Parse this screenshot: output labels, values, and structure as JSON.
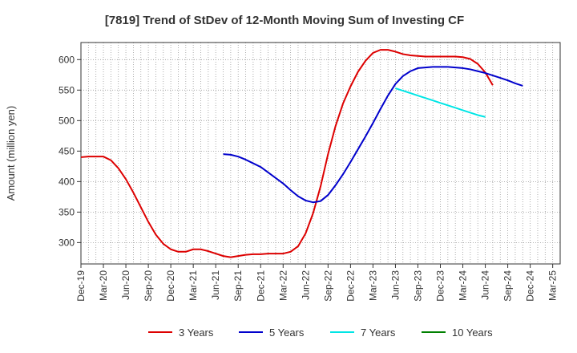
{
  "chart_data": {
    "type": "line",
    "title": "[7819]  Trend of StDev of 12-Month Moving Sum of Investing CF",
    "ylabel": "Amount (million yen)",
    "xlabel": "",
    "ylim": [
      265,
      628
    ],
    "yticks": [
      300,
      350,
      400,
      450,
      500,
      550,
      600
    ],
    "x_tick_labels": [
      "Dec-19",
      "Mar-20",
      "Jun-20",
      "Sep-20",
      "Dec-20",
      "Mar-21",
      "Jun-21",
      "Sep-21",
      "Dec-21",
      "Mar-22",
      "Jun-22",
      "Sep-22",
      "Dec-22",
      "Mar-23",
      "Jun-23",
      "Sep-23",
      "Dec-23",
      "Mar-24",
      "Jun-24",
      "Sep-24",
      "Dec-24",
      "Mar-25"
    ],
    "grid": true,
    "legend_position": "bottom",
    "series": [
      {
        "name": "3 Years",
        "color": "#dd0000",
        "start_index": 0,
        "values": [
          440,
          441,
          441,
          441,
          435,
          422,
          404,
          382,
          358,
          334,
          313,
          298,
          289,
          285,
          285,
          289,
          289,
          286,
          282,
          278,
          276,
          278,
          280,
          281,
          281,
          282,
          282,
          282,
          285,
          294,
          315,
          348,
          392,
          445,
          491,
          528,
          556,
          580,
          598,
          611,
          616,
          616,
          613,
          609,
          607,
          606,
          605,
          605,
          605,
          605,
          605,
          604,
          601,
          593,
          579,
          558
        ]
      },
      {
        "name": "5 Years",
        "color": "#0000cc",
        "start_index": 19,
        "values": [
          445,
          444,
          441,
          436,
          430,
          424,
          415,
          406,
          397,
          386,
          376,
          369,
          366,
          368,
          378,
          394,
          412,
          432,
          453,
          474,
          496,
          519,
          541,
          560,
          573,
          581,
          586,
          587,
          588,
          588,
          588,
          587,
          586,
          584,
          581,
          578,
          574,
          570,
          566,
          561,
          557
        ]
      },
      {
        "name": "7 Years",
        "color": "#00e5e5",
        "start_index": 42,
        "values": [
          553,
          549,
          545,
          541,
          537,
          533,
          529,
          525,
          521,
          517,
          513,
          509,
          506
        ]
      },
      {
        "name": "10 Years",
        "color": "#008000",
        "start_index": 0,
        "values": []
      }
    ]
  }
}
